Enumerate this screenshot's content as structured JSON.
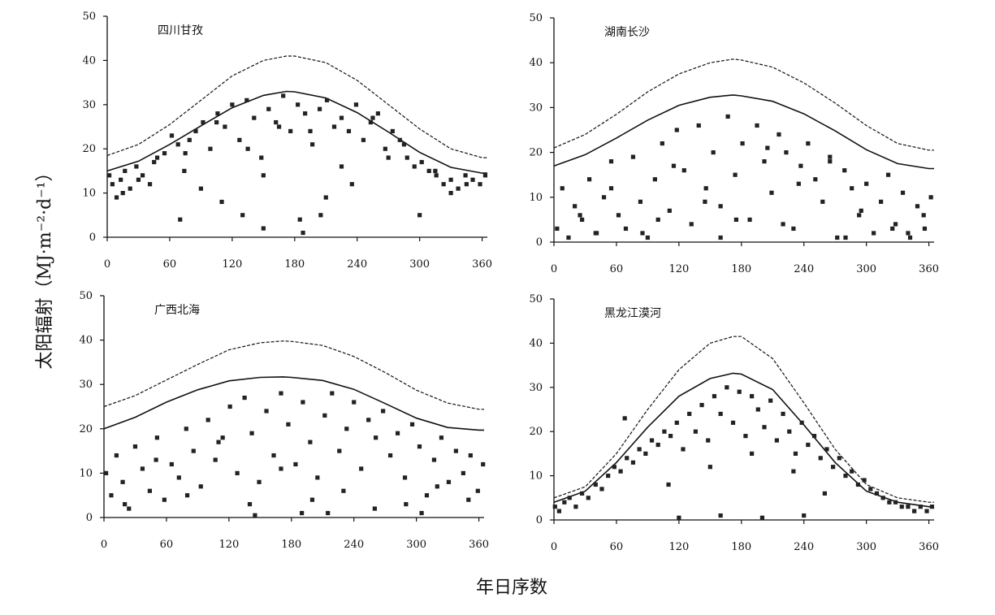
{
  "figure": {
    "ylabel": "太阳辐射（MJ·m⁻²·d⁻¹）",
    "xlabel": "年日序数"
  },
  "chart_data": [
    {
      "type": "scatter",
      "title": "四川甘孜",
      "xlim": [
        0,
        365
      ],
      "ylim": [
        0,
        50
      ],
      "xticks": [
        0,
        60,
        120,
        180,
        240,
        300,
        360
      ],
      "yticks": [
        0,
        10,
        20,
        30,
        40,
        50
      ],
      "series": [
        {
          "style": "dashed-line",
          "x": [
            0,
            30,
            60,
            90,
            120,
            150,
            172,
            180,
            210,
            240,
            270,
            300,
            330,
            360,
            365
          ],
          "y": [
            18.5,
            21,
            25.5,
            31,
            36.5,
            40,
            41,
            41,
            39.5,
            35.5,
            30,
            24.5,
            20,
            18,
            18
          ]
        },
        {
          "style": "solid-line",
          "x": [
            0,
            30,
            60,
            90,
            120,
            150,
            172,
            180,
            210,
            240,
            270,
            300,
            330,
            360,
            365
          ],
          "y": [
            15,
            17.2,
            21,
            25.2,
            29.3,
            32.1,
            33,
            32.9,
            31.5,
            28.2,
            23.8,
            19.2,
            15.8,
            14.5,
            14.5
          ]
        },
        {
          "style": "points",
          "x": [
            2,
            5,
            9,
            13,
            17,
            22,
            28,
            34,
            41,
            48,
            55,
            62,
            68,
            74,
            79,
            85,
            92,
            99,
            106,
            113,
            120,
            127,
            134,
            141,
            148,
            155,
            162,
            169,
            176,
            183,
            190,
            197,
            204,
            211,
            218,
            225,
            232,
            239,
            246,
            253,
            260,
            267,
            274,
            281,
            288,
            295,
            302,
            309,
            316,
            323,
            330,
            337,
            344,
            351,
            358,
            363,
            15,
            45,
            75,
            105,
            135,
            165,
            195,
            225,
            255,
            285,
            315,
            345,
            30,
            90,
            150,
            210,
            270,
            330,
            70,
            110,
            130,
            150,
            185,
            188,
            205,
            235,
            300
          ],
          "y": [
            14,
            12,
            9,
            13,
            15,
            11,
            16,
            14,
            12,
            18,
            19,
            23,
            21,
            15,
            22,
            24,
            26,
            20,
            28,
            25,
            30,
            22,
            31,
            27,
            18,
            29,
            26,
            32,
            24,
            30,
            28,
            21,
            29,
            31,
            25,
            27,
            24,
            30,
            22,
            26,
            28,
            20,
            24,
            22,
            18,
            16,
            17,
            15,
            14,
            12,
            13,
            11,
            14,
            13,
            12,
            14,
            10,
            17,
            19,
            26,
            20,
            25,
            24,
            16,
            27,
            21,
            15,
            12,
            13,
            11,
            14,
            9,
            18,
            10,
            4,
            8,
            5,
            2,
            4,
            1,
            5,
            12,
            5
          ]
        }
      ]
    },
    {
      "type": "scatter",
      "title": "湖南长沙",
      "xlim": [
        0,
        365
      ],
      "ylim": [
        0,
        50
      ],
      "xticks": [
        0,
        60,
        120,
        180,
        240,
        300,
        360
      ],
      "yticks": [
        0,
        10,
        20,
        30,
        40,
        50
      ],
      "series": [
        {
          "style": "dashed-line",
          "x": [
            0,
            30,
            60,
            90,
            120,
            150,
            172,
            180,
            210,
            240,
            270,
            300,
            330,
            360,
            365
          ],
          "y": [
            21,
            24,
            28.5,
            33.5,
            37.5,
            40,
            40.8,
            40.6,
            39,
            35.5,
            31,
            26,
            22,
            20.5,
            20.5
          ]
        },
        {
          "style": "solid-line",
          "x": [
            0,
            30,
            60,
            90,
            120,
            150,
            172,
            180,
            210,
            240,
            270,
            300,
            330,
            360,
            365
          ],
          "y": [
            17,
            19.5,
            23.2,
            27.2,
            30.5,
            32.3,
            32.8,
            32.6,
            31.4,
            28.6,
            24.8,
            20.6,
            17.5,
            16.4,
            16.4
          ]
        },
        {
          "style": "points",
          "x": [
            3,
            8,
            14,
            20,
            27,
            34,
            41,
            48,
            55,
            62,
            69,
            76,
            83,
            90,
            97,
            104,
            111,
            118,
            125,
            132,
            139,
            146,
            153,
            160,
            167,
            174,
            181,
            188,
            195,
            202,
            209,
            216,
            223,
            230,
            237,
            244,
            251,
            258,
            265,
            272,
            279,
            286,
            293,
            300,
            307,
            314,
            321,
            328,
            335,
            342,
            349,
            356,
            362,
            25,
            55,
            85,
            115,
            145,
            175,
            205,
            235,
            265,
            295,
            325,
            355,
            40,
            100,
            160,
            220,
            280,
            340
          ],
          "y": [
            3,
            12,
            1,
            8,
            5,
            14,
            2,
            10,
            18,
            6,
            3,
            19,
            9,
            1,
            14,
            22,
            7,
            25,
            16,
            4,
            26,
            12,
            20,
            8,
            28,
            15,
            22,
            5,
            26,
            18,
            11,
            24,
            20,
            3,
            17,
            22,
            14,
            9,
            19,
            1,
            16,
            12,
            6,
            13,
            2,
            9,
            15,
            4,
            11,
            1,
            8,
            3,
            10,
            6,
            12,
            2,
            17,
            9,
            5,
            21,
            13,
            18,
            7,
            3,
            6,
            2,
            5,
            1,
            4,
            1,
            2
          ]
        }
      ]
    },
    {
      "type": "scatter",
      "title": "广西北海",
      "xlim": [
        0,
        365
      ],
      "ylim": [
        0,
        50
      ],
      "xticks": [
        0,
        60,
        120,
        180,
        240,
        300,
        360
      ],
      "yticks": [
        0,
        10,
        20,
        30,
        40,
        50
      ],
      "series": [
        {
          "style": "dashed-line",
          "x": [
            0,
            30,
            60,
            90,
            120,
            150,
            172,
            180,
            210,
            240,
            270,
            300,
            330,
            360,
            365
          ],
          "y": [
            25,
            27.5,
            31,
            34.5,
            37.8,
            39.4,
            39.8,
            39.7,
            38.8,
            36.3,
            32.7,
            28.7,
            25.8,
            24.4,
            24.4
          ]
        },
        {
          "style": "solid-line",
          "x": [
            0,
            30,
            60,
            90,
            120,
            150,
            172,
            180,
            210,
            240,
            270,
            300,
            330,
            360,
            365
          ],
          "y": [
            20,
            22.6,
            26,
            28.8,
            30.8,
            31.6,
            31.7,
            31.6,
            30.9,
            28.9,
            25.7,
            22.4,
            20.3,
            19.7,
            19.7
          ]
        },
        {
          "style": "points",
          "x": [
            2,
            7,
            12,
            18,
            24,
            30,
            37,
            44,
            51,
            58,
            65,
            72,
            79,
            86,
            93,
            100,
            107,
            114,
            121,
            128,
            135,
            142,
            149,
            156,
            163,
            170,
            177,
            184,
            191,
            198,
            205,
            212,
            219,
            226,
            233,
            240,
            247,
            254,
            261,
            268,
            275,
            282,
            289,
            296,
            303,
            310,
            317,
            324,
            331,
            338,
            345,
            352,
            359,
            364,
            20,
            50,
            80,
            110,
            140,
            170,
            200,
            230,
            260,
            290,
            320,
            350,
            145,
            190,
            215,
            305
          ],
          "y": [
            10,
            5,
            14,
            8,
            2,
            16,
            11,
            6,
            18,
            4,
            12,
            9,
            20,
            15,
            7,
            22,
            13,
            18,
            25,
            10,
            27,
            19,
            8,
            24,
            14,
            28,
            21,
            12,
            26,
            17,
            9,
            23,
            28,
            15,
            20,
            26,
            11,
            22,
            18,
            24,
            14,
            19,
            9,
            21,
            16,
            5,
            13,
            18,
            8,
            15,
            10,
            14,
            6,
            12,
            3,
            13,
            5,
            17,
            3,
            11,
            4,
            6,
            2,
            3,
            7,
            4,
            0.5,
            1,
            1,
            1
          ]
        }
      ]
    },
    {
      "type": "scatter",
      "title": "黑龙江漠河",
      "xlim": [
        0,
        365
      ],
      "ylim": [
        0,
        50
      ],
      "xticks": [
        0,
        60,
        120,
        180,
        240,
        300,
        360
      ],
      "yticks": [
        0,
        10,
        20,
        30,
        40,
        50
      ],
      "series": [
        {
          "style": "dashed-line",
          "x": [
            0,
            30,
            60,
            90,
            120,
            150,
            172,
            180,
            210,
            240,
            270,
            300,
            330,
            360,
            365
          ],
          "y": [
            5,
            7.5,
            15,
            25,
            34,
            40,
            41.5,
            41.5,
            36.5,
            26.5,
            16,
            8,
            5,
            4,
            4
          ]
        },
        {
          "style": "solid-line",
          "x": [
            0,
            30,
            60,
            90,
            120,
            150,
            172,
            180,
            210,
            240,
            270,
            300,
            330,
            360,
            365
          ],
          "y": [
            4,
            6.5,
            13,
            21,
            28,
            32,
            33.2,
            33,
            29.5,
            21.5,
            13,
            6.5,
            4,
            3,
            3
          ]
        },
        {
          "style": "points",
          "x": [
            1,
            5,
            10,
            15,
            21,
            27,
            33,
            40,
            46,
            52,
            58,
            64,
            70,
            76,
            82,
            88,
            94,
            100,
            106,
            112,
            118,
            124,
            130,
            136,
            142,
            148,
            154,
            160,
            166,
            172,
            178,
            184,
            190,
            196,
            202,
            208,
            214,
            220,
            226,
            232,
            238,
            244,
            250,
            256,
            262,
            268,
            274,
            280,
            286,
            292,
            298,
            304,
            310,
            316,
            322,
            328,
            334,
            340,
            346,
            352,
            358,
            363,
            68,
            110,
            150,
            190,
            230,
            260,
            120,
            160,
            200,
            240
          ],
          "y": [
            3,
            2,
            4,
            5,
            3,
            6,
            5,
            8,
            7,
            10,
            12,
            11,
            14,
            13,
            16,
            15,
            18,
            17,
            20,
            19,
            22,
            16,
            24,
            20,
            26,
            18,
            28,
            24,
            30,
            22,
            29,
            19,
            28,
            25,
            21,
            27,
            18,
            24,
            20,
            15,
            22,
            17,
            19,
            14,
            16,
            12,
            14,
            10,
            11,
            8,
            9,
            7,
            6,
            5,
            4,
            4,
            3,
            3,
            2,
            3,
            2,
            3,
            23,
            8,
            12,
            15,
            11,
            6,
            0.5,
            1,
            0.5,
            1
          ]
        }
      ]
    }
  ]
}
